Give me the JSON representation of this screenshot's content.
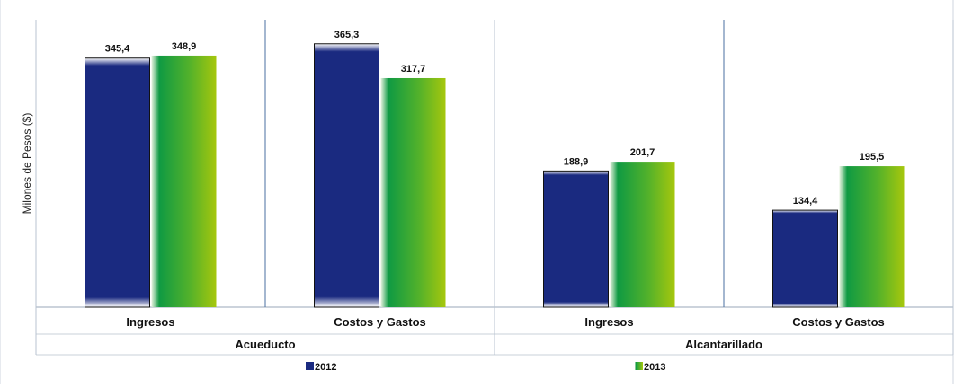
{
  "colors": {
    "series_2012": "#1a2a80",
    "series_2013_start": "#0f9a43",
    "series_2013_end": "#a6c70d",
    "divider": "#4a6fa0",
    "axis": "#9aa7b8"
  },
  "chart_data": {
    "type": "bar",
    "title": "",
    "ylabel": "Milones de Pesos ($)",
    "xlabel": "",
    "ylim": [
      0,
      370
    ],
    "grid": false,
    "legend_position": "bottom",
    "groups": [
      {
        "name": "Acueducto",
        "categories": [
          "Ingresos",
          "Costos y Gastos"
        ]
      },
      {
        "name": "Alcantarillado",
        "categories": [
          "Ingresos",
          "Costos y Gastos"
        ]
      }
    ],
    "categories": [
      "Ingresos",
      "Costos y Gastos",
      "Ingresos",
      "Costos y Gastos"
    ],
    "series": [
      {
        "name": "2012",
        "values": [
          345.4,
          365.3,
          188.9,
          134.4
        ],
        "labels": [
          "345,4",
          "365,3",
          "188,9",
          "134,4"
        ]
      },
      {
        "name": "2013",
        "values": [
          348.9,
          317.7,
          201.7,
          195.5
        ],
        "labels": [
          "348,9",
          "317,7",
          "201,7",
          "195,5"
        ]
      }
    ]
  }
}
